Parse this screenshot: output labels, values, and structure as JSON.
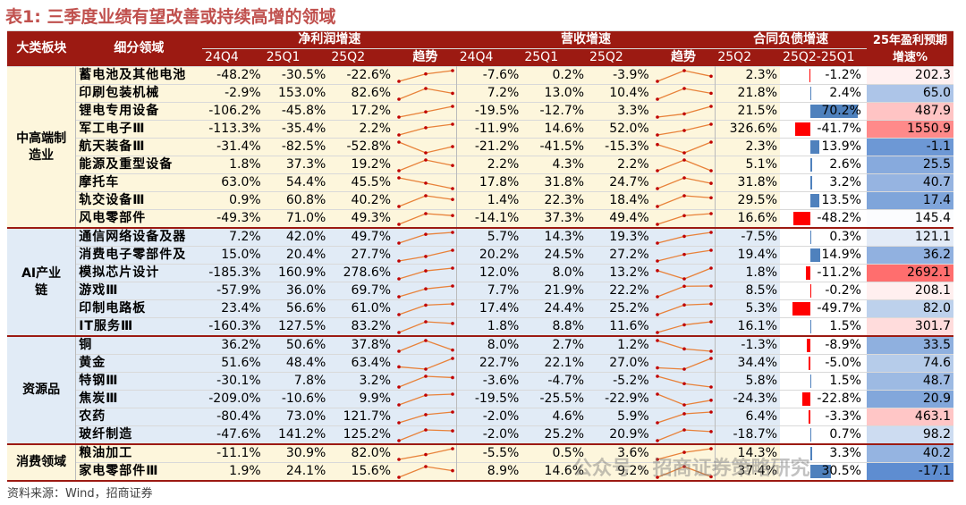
{
  "title_label": "表1:",
  "title_text": "三季度业绩有望改善或持续高增的领域",
  "source": "资料来源：Wind，招商证券",
  "watermark": "公众号 · 招商证券策略研究",
  "headers": {
    "category": "大类板块",
    "subsector": "细分领域",
    "profit": "净利润增速",
    "revenue": "营收增速",
    "contract": "合同负债增速",
    "forecast": "25年盈利预期增速%",
    "periods": [
      "24Q4",
      "25Q1",
      "25Q2"
    ],
    "trend": "趋势",
    "contract_periods": [
      "25Q2",
      "25Q2-25Q1"
    ]
  },
  "groups": [
    {
      "name": "中高端制造业",
      "rows": 9,
      "color": "#fdf6dc"
    },
    {
      "name": "AI产业链",
      "rows": 6,
      "color": "#e1ebf6"
    },
    {
      "name": "资源品",
      "rows": 6,
      "color": "#e1ebf6"
    },
    {
      "name": "消费领域",
      "rows": 2,
      "color": "#fdf6dc"
    }
  ],
  "rows": [
    {
      "name": "蓄电池及其他电池",
      "profit": [
        "-48.2%",
        "-30.5%",
        "-22.6%"
      ],
      "profit_v": [
        -48.2,
        -30.5,
        -22.6
      ],
      "rev": [
        "-7.6%",
        "0.2%",
        "-3.9%"
      ],
      "rev_v": [
        -7.6,
        0.2,
        -3.9
      ],
      "cl": "2.3%",
      "diff": "-1.2%",
      "diff_v": -1.2,
      "fc": "202.3",
      "fc_v": 202.3
    },
    {
      "name": "印刷包装机械",
      "profit": [
        "-2.9%",
        "153.0%",
        "82.6%"
      ],
      "profit_v": [
        -2.9,
        153.0,
        82.6
      ],
      "rev": [
        "7.2%",
        "13.0%",
        "10.4%"
      ],
      "rev_v": [
        7.2,
        13.0,
        10.4
      ],
      "cl": "21.8%",
      "diff": "2.4%",
      "diff_v": 2.4,
      "fc": "65.0",
      "fc_v": 65.0
    },
    {
      "name": "锂电专用设备",
      "profit": [
        "-106.2%",
        "-45.8%",
        "17.2%"
      ],
      "profit_v": [
        -106.2,
        -45.8,
        17.2
      ],
      "rev": [
        "-19.5%",
        "-12.7%",
        "3.3%"
      ],
      "rev_v": [
        -19.5,
        -12.7,
        3.3
      ],
      "cl": "21.5%",
      "diff": "70.2%",
      "diff_v": 70.2,
      "fc": "487.9",
      "fc_v": 487.9
    },
    {
      "name": "军工电子Ⅲ",
      "profit": [
        "-113.3%",
        "-35.4%",
        "2.2%"
      ],
      "profit_v": [
        -113.3,
        -35.4,
        2.2
      ],
      "rev": [
        "-11.9%",
        "14.6%",
        "52.0%"
      ],
      "rev_v": [
        -11.9,
        14.6,
        52.0
      ],
      "cl": "326.6%",
      "diff": "-41.7%",
      "diff_v": -41.7,
      "fc": "1550.9",
      "fc_v": 1550.9
    },
    {
      "name": "航天装备Ⅲ",
      "profit": [
        "-31.4%",
        "-82.5%",
        "-52.8%"
      ],
      "profit_v": [
        -31.4,
        -82.5,
        -52.8
      ],
      "rev": [
        "-21.2%",
        "-41.5%",
        "-15.3%"
      ],
      "rev_v": [
        -21.2,
        -41.5,
        -15.3
      ],
      "cl": "2.3%",
      "diff": "13.9%",
      "diff_v": 13.9,
      "fc": "-1.1",
      "fc_v": -1.1
    },
    {
      "name": "能源及重型设备",
      "profit": [
        "1.8%",
        "37.3%",
        "19.2%"
      ],
      "profit_v": [
        1.8,
        37.3,
        19.2
      ],
      "rev": [
        "2.2%",
        "4.3%",
        "2.2%"
      ],
      "rev_v": [
        2.2,
        4.3,
        2.2
      ],
      "cl": "5.1%",
      "diff": "2.6%",
      "diff_v": 2.6,
      "fc": "25.5",
      "fc_v": 25.5
    },
    {
      "name": "摩托车",
      "profit": [
        "63.0%",
        "54.4%",
        "45.5%"
      ],
      "profit_v": [
        63.0,
        54.4,
        45.5
      ],
      "rev": [
        "17.8%",
        "31.8%",
        "24.7%"
      ],
      "rev_v": [
        17.8,
        31.8,
        24.7
      ],
      "cl": "31.8%",
      "diff": "3.2%",
      "diff_v": 3.2,
      "fc": "40.7",
      "fc_v": 40.7
    },
    {
      "name": "轨交设备Ⅲ",
      "profit": [
        "0.9%",
        "60.8%",
        "40.2%"
      ],
      "profit_v": [
        0.9,
        60.8,
        40.2
      ],
      "rev": [
        "1.4%",
        "22.3%",
        "18.4%"
      ],
      "rev_v": [
        1.4,
        22.3,
        18.4
      ],
      "cl": "29.5%",
      "diff": "13.5%",
      "diff_v": 13.5,
      "fc": "17.4",
      "fc_v": 17.4
    },
    {
      "name": "风电零部件",
      "profit": [
        "-49.3%",
        "71.0%",
        "49.3%"
      ],
      "profit_v": [
        -49.3,
        71.0,
        49.3
      ],
      "rev": [
        "-14.1%",
        "37.3%",
        "49.4%"
      ],
      "rev_v": [
        -14.1,
        37.3,
        49.4
      ],
      "cl": "16.6%",
      "diff": "-48.2%",
      "diff_v": -48.2,
      "fc": "145.4",
      "fc_v": 145.4
    },
    {
      "name": "通信网络设备及器",
      "profit": [
        "7.2%",
        "42.0%",
        "49.7%"
      ],
      "profit_v": [
        7.2,
        42.0,
        49.7
      ],
      "rev": [
        "5.7%",
        "14.3%",
        "19.3%"
      ],
      "rev_v": [
        5.7,
        14.3,
        19.3
      ],
      "cl": "-7.5%",
      "diff": "0.3%",
      "diff_v": 0.3,
      "fc": "121.1",
      "fc_v": 121.1
    },
    {
      "name": "消费电子零部件及",
      "profit": [
        "15.0%",
        "20.4%",
        "27.7%"
      ],
      "profit_v": [
        15.0,
        20.4,
        27.7
      ],
      "rev": [
        "20.2%",
        "24.5%",
        "27.2%"
      ],
      "rev_v": [
        20.2,
        24.5,
        27.2
      ],
      "cl": "19.4%",
      "diff": "14.9%",
      "diff_v": 14.9,
      "fc": "36.2",
      "fc_v": 36.2
    },
    {
      "name": "模拟芯片设计",
      "profit": [
        "-185.3%",
        "160.9%",
        "278.6%"
      ],
      "profit_v": [
        -185.3,
        160.9,
        278.6
      ],
      "rev": [
        "12.0%",
        "8.0%",
        "13.2%"
      ],
      "rev_v": [
        12.0,
        8.0,
        13.2
      ],
      "cl": "1.8%",
      "diff": "-11.2%",
      "diff_v": -11.2,
      "fc": "2692.1",
      "fc_v": 2692.1
    },
    {
      "name": "游戏Ⅲ",
      "profit": [
        "-57.9%",
        "36.0%",
        "69.7%"
      ],
      "profit_v": [
        -57.9,
        36.0,
        69.7
      ],
      "rev": [
        "7.7%",
        "21.9%",
        "22.2%"
      ],
      "rev_v": [
        7.7,
        21.9,
        22.2
      ],
      "cl": "8.5%",
      "diff": "-0.2%",
      "diff_v": -0.2,
      "fc": "208.1",
      "fc_v": 208.1
    },
    {
      "name": "印制电路板",
      "profit": [
        "23.4%",
        "56.6%",
        "61.0%"
      ],
      "profit_v": [
        23.4,
        56.6,
        61.0
      ],
      "rev": [
        "17.4%",
        "24.4%",
        "25.2%"
      ],
      "rev_v": [
        17.4,
        24.4,
        25.2
      ],
      "cl": "5.3%",
      "diff": "-49.7%",
      "diff_v": -49.7,
      "fc": "82.0",
      "fc_v": 82.0
    },
    {
      "name": "IT服务Ⅲ",
      "profit": [
        "-160.3%",
        "127.5%",
        "83.2%"
      ],
      "profit_v": [
        -160.3,
        127.5,
        83.2
      ],
      "rev": [
        "1.8%",
        "8.8%",
        "11.6%"
      ],
      "rev_v": [
        1.8,
        8.8,
        11.6
      ],
      "cl": "16.1%",
      "diff": "1.5%",
      "diff_v": 1.5,
      "fc": "301.7",
      "fc_v": 301.7
    },
    {
      "name": "铜",
      "profit": [
        "36.2%",
        "50.6%",
        "37.8%"
      ],
      "profit_v": [
        36.2,
        50.6,
        37.8
      ],
      "rev": [
        "8.0%",
        "2.7%",
        "1.2%"
      ],
      "rev_v": [
        8.0,
        2.7,
        1.2
      ],
      "cl": "-1.3%",
      "diff": "-8.9%",
      "diff_v": -8.9,
      "fc": "33.5",
      "fc_v": 33.5
    },
    {
      "name": "黄金",
      "profit": [
        "51.6%",
        "48.4%",
        "63.4%"
      ],
      "profit_v": [
        51.6,
        48.4,
        63.4
      ],
      "rev": [
        "22.7%",
        "22.1%",
        "27.0%"
      ],
      "rev_v": [
        22.7,
        22.1,
        27.0
      ],
      "cl": "34.4%",
      "diff": "-5.0%",
      "diff_v": -5.0,
      "fc": "74.6",
      "fc_v": 74.6
    },
    {
      "name": "特钢Ⅲ",
      "profit": [
        "-30.1%",
        "7.8%",
        "3.2%"
      ],
      "profit_v": [
        -30.1,
        7.8,
        3.2
      ],
      "rev": [
        "-3.6%",
        "-4.7%",
        "-5.2%"
      ],
      "rev_v": [
        -3.6,
        -4.7,
        -5.2
      ],
      "cl": "5.8%",
      "diff": "1.5%",
      "diff_v": 1.5,
      "fc": "48.7",
      "fc_v": 48.7
    },
    {
      "name": "焦炭Ⅲ",
      "profit": [
        "-209.0%",
        "-10.6%",
        "9.9%"
      ],
      "profit_v": [
        -209.0,
        -10.6,
        9.9
      ],
      "rev": [
        "-19.5%",
        "-25.5%",
        "-22.9%"
      ],
      "rev_v": [
        -19.5,
        -25.5,
        -22.9
      ],
      "cl": "-24.3%",
      "diff": "-22.8%",
      "diff_v": -22.8,
      "fc": "20.9",
      "fc_v": 20.9
    },
    {
      "name": "农药",
      "profit": [
        "-80.4%",
        "73.0%",
        "121.7%"
      ],
      "profit_v": [
        -80.4,
        73.0,
        121.7
      ],
      "rev": [
        "-2.0%",
        "4.6%",
        "5.9%"
      ],
      "rev_v": [
        -2.0,
        4.6,
        5.9
      ],
      "cl": "6.4%",
      "diff": "-3.3%",
      "diff_v": -3.3,
      "fc": "463.1",
      "fc_v": 463.1
    },
    {
      "name": "玻纤制造",
      "profit": [
        "-47.6%",
        "141.2%",
        "125.2%"
      ],
      "profit_v": [
        -47.6,
        141.2,
        125.2
      ],
      "rev": [
        "-2.0%",
        "25.2%",
        "20.9%"
      ],
      "rev_v": [
        -2.0,
        25.2,
        20.9
      ],
      "cl": "-18.7%",
      "diff": "0.7%",
      "diff_v": 0.7,
      "fc": "98.2",
      "fc_v": 98.2
    },
    {
      "name": "粮油加工",
      "profit": [
        "-11.1%",
        "30.9%",
        "82.0%"
      ],
      "profit_v": [
        -11.1,
        30.9,
        82.0
      ],
      "rev": [
        "-5.5%",
        "0.5%",
        "3.6%"
      ],
      "rev_v": [
        -5.5,
        0.5,
        3.6
      ],
      "cl": "14.3%",
      "diff": "3.3%",
      "diff_v": 3.3,
      "fc": "40.2",
      "fc_v": 40.2
    },
    {
      "name": "家电零部件Ⅲ",
      "profit": [
        "1.9%",
        "24.1%",
        "15.6%"
      ],
      "profit_v": [
        1.9,
        24.1,
        15.6
      ],
      "rev": [
        "8.9%",
        "14.6%",
        "9.2%"
      ],
      "rev_v": [
        8.9,
        14.6,
        9.2
      ],
      "cl": "37.4%",
      "diff": "30.5%",
      "diff_v": 30.5,
      "fc": "-17.1",
      "fc_v": -17.1
    }
  ],
  "colors": {
    "header": "#9c1a12",
    "title": "#c0504d",
    "line": "#e8823a",
    "point": "#c00000",
    "bar_pos": "#4f81bd",
    "bar_neg": "#ff0000",
    "heat_low": "#5b8bd0",
    "heat_high": "#f08080"
  }
}
